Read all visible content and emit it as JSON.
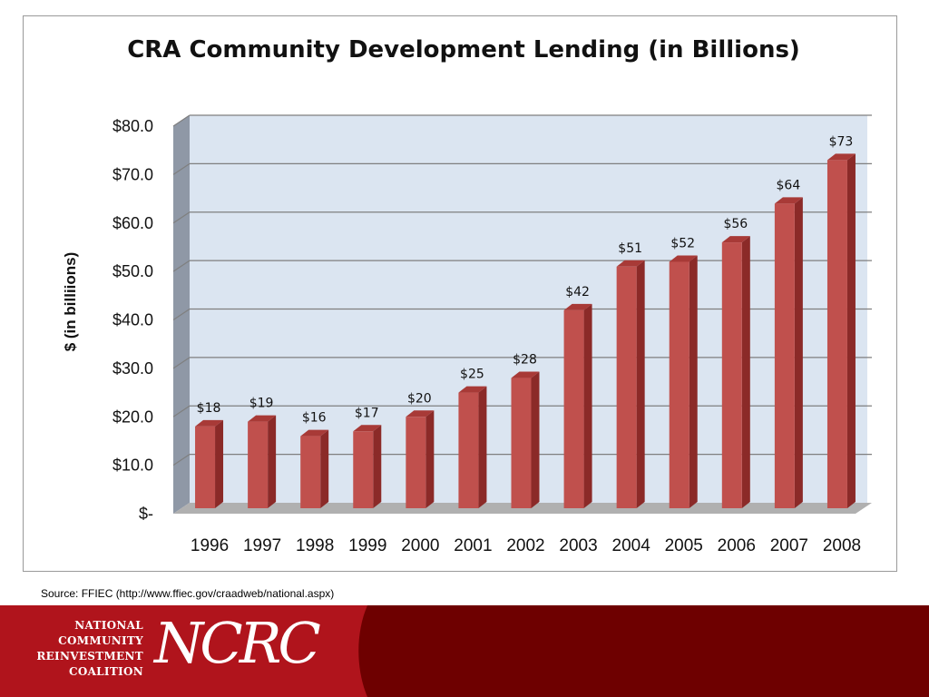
{
  "chart_data": {
    "type": "bar",
    "title": "CRA Community Development Lending (in Billions)",
    "xlabel": "",
    "ylabel": "$ (in billiions)",
    "ylim": [
      0,
      80
    ],
    "yticks": [
      0,
      10,
      20,
      30,
      40,
      50,
      60,
      70,
      80
    ],
    "ytick_labels": [
      "$-",
      "$10.0",
      "$20.0",
      "$30.0",
      "$40.0",
      "$50.0",
      "$60.0",
      "$70.0",
      "$80.0"
    ],
    "categories": [
      "1996",
      "1997",
      "1998",
      "1999",
      "2000",
      "2001",
      "2002",
      "2003",
      "2004",
      "2005",
      "2006",
      "2007",
      "2008"
    ],
    "values": [
      18,
      19,
      16,
      17,
      20,
      25,
      28,
      42,
      51,
      52,
      56,
      64,
      73
    ],
    "data_labels": [
      "$18",
      "$19",
      "$16",
      "$17",
      "$20",
      "$25",
      "$28",
      "$42",
      "$51",
      "$52",
      "$56",
      "$64",
      "$73"
    ],
    "grid": true,
    "legend": "none",
    "colors": {
      "bar_front": "#c0504d",
      "bar_side": "#8b2a28",
      "bar_top": "#a83a37",
      "plot_back": "#dbe5f1",
      "plot_wall": "#8f98a6",
      "plot_floor": "#b0b0b0",
      "gridline": "#7f7f7f"
    }
  },
  "source": "Source: FFIEC (http://www.ffiec.gov/craadweb/national.aspx)",
  "footer": {
    "org_name_lines": [
      "NATIONAL",
      "COMMUNITY",
      "REINVESTMENT",
      "COALITION"
    ],
    "logo_text": "NCRC",
    "colors": {
      "band": "#6e0000",
      "swoosh": "#b0141c"
    }
  }
}
